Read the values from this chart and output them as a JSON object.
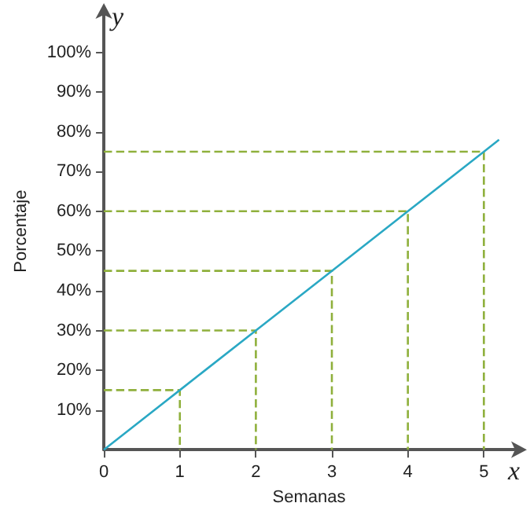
{
  "chart_data": {
    "type": "line",
    "xlabel": "Semanas",
    "ylabel": "Porcentaje",
    "annotations": [
      "x",
      "y"
    ],
    "xlim": [
      0,
      5.4
    ],
    "ylim": [
      0,
      110
    ],
    "xticks": [
      0,
      1,
      2,
      3,
      4,
      5
    ],
    "yticks": [
      {
        "value": 10,
        "label": "10%"
      },
      {
        "value": 20,
        "label": "20%"
      },
      {
        "value": 30,
        "label": "30%"
      },
      {
        "value": 40,
        "label": "40%"
      },
      {
        "value": 50,
        "label": "50%"
      },
      {
        "value": 60,
        "label": "60%"
      },
      {
        "value": 70,
        "label": "70%"
      },
      {
        "value": 80,
        "label": "80%"
      },
      {
        "value": 90,
        "label": "90%"
      },
      {
        "value": 100,
        "label": "100%"
      }
    ],
    "grid": false,
    "marker": "none",
    "series": [
      {
        "color": "#2aa8c4",
        "x": [
          0,
          1,
          2,
          3,
          4,
          5,
          5.2
        ],
        "values": [
          0,
          15,
          30,
          45,
          60,
          75,
          78
        ]
      },
      {
        "color": "#8fb03c",
        "line_style": "dashed",
        "x": [
          0,
          1,
          1
        ],
        "values": [
          15,
          15,
          0
        ]
      },
      {
        "color": "#8fb03c",
        "line_style": "dashed",
        "x": [
          0,
          2,
          2
        ],
        "values": [
          30,
          30,
          0
        ]
      },
      {
        "color": "#8fb03c",
        "line_style": "dashed",
        "x": [
          0,
          3,
          3
        ],
        "values": [
          45,
          45,
          0
        ]
      },
      {
        "color": "#8fb03c",
        "line_style": "dashed",
        "x": [
          0,
          4,
          4
        ],
        "values": [
          60,
          60,
          0
        ]
      },
      {
        "color": "#8fb03c",
        "line_style": "dashed",
        "x": [
          0,
          5,
          5
        ],
        "values": [
          75,
          75,
          0
        ]
      }
    ]
  }
}
